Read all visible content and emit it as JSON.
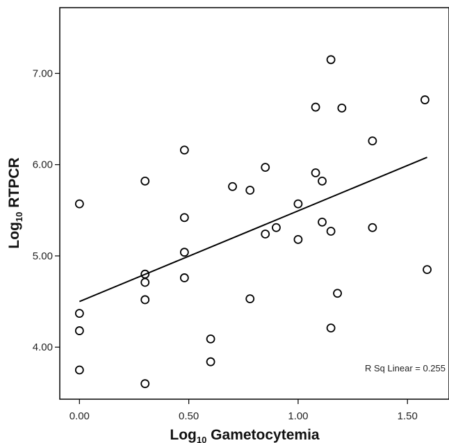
{
  "chart_data": {
    "type": "scatter",
    "xlabel": {
      "base": "Log",
      "sub": "10",
      "rest": " Gametocytemia"
    },
    "ylabel": {
      "base": "Log",
      "sub": "10",
      "rest": " RTPCR"
    },
    "xlim": [
      -0.09,
      1.69
    ],
    "ylim": [
      3.43,
      7.72
    ],
    "xticks": [
      0.0,
      0.5,
      1.0,
      1.5
    ],
    "xtick_labels": [
      "0.00",
      "0.50",
      "1.00",
      "1.50"
    ],
    "yticks": [
      4.0,
      5.0,
      6.0,
      7.0
    ],
    "ytick_labels": [
      "4.00",
      "5.00",
      "6.00",
      "7.00"
    ],
    "points": [
      {
        "x": 0.0,
        "y": 5.57
      },
      {
        "x": 0.0,
        "y": 4.37
      },
      {
        "x": 0.0,
        "y": 4.18
      },
      {
        "x": 0.0,
        "y": 3.75
      },
      {
        "x": 0.3,
        "y": 5.82
      },
      {
        "x": 0.3,
        "y": 4.8
      },
      {
        "x": 0.3,
        "y": 4.71
      },
      {
        "x": 0.3,
        "y": 4.52
      },
      {
        "x": 0.3,
        "y": 3.6
      },
      {
        "x": 0.48,
        "y": 6.16
      },
      {
        "x": 0.48,
        "y": 5.42
      },
      {
        "x": 0.48,
        "y": 5.04
      },
      {
        "x": 0.48,
        "y": 4.76
      },
      {
        "x": 0.6,
        "y": 4.09
      },
      {
        "x": 0.6,
        "y": 3.84
      },
      {
        "x": 0.7,
        "y": 5.76
      },
      {
        "x": 0.78,
        "y": 5.72
      },
      {
        "x": 0.78,
        "y": 4.53
      },
      {
        "x": 0.85,
        "y": 5.97
      },
      {
        "x": 0.85,
        "y": 5.24
      },
      {
        "x": 0.9,
        "y": 5.31
      },
      {
        "x": 1.0,
        "y": 5.57
      },
      {
        "x": 1.0,
        "y": 5.18
      },
      {
        "x": 1.08,
        "y": 6.63
      },
      {
        "x": 1.08,
        "y": 5.91
      },
      {
        "x": 1.11,
        "y": 5.82
      },
      {
        "x": 1.11,
        "y": 5.37
      },
      {
        "x": 1.15,
        "y": 7.15
      },
      {
        "x": 1.15,
        "y": 5.27
      },
      {
        "x": 1.15,
        "y": 4.21
      },
      {
        "x": 1.18,
        "y": 4.59
      },
      {
        "x": 1.2,
        "y": 6.62
      },
      {
        "x": 1.34,
        "y": 6.26
      },
      {
        "x": 1.34,
        "y": 5.31
      },
      {
        "x": 1.58,
        "y": 6.71
      },
      {
        "x": 1.59,
        "y": 4.85
      }
    ],
    "fit_line": {
      "x": [
        0.0,
        1.59
      ],
      "y": [
        4.5,
        6.08
      ]
    },
    "annotations": [
      "R Sq Linear = 0.255"
    ],
    "grid": false,
    "marker": "open-circle",
    "line_color": "#000000",
    "marker_color": "#000000"
  }
}
